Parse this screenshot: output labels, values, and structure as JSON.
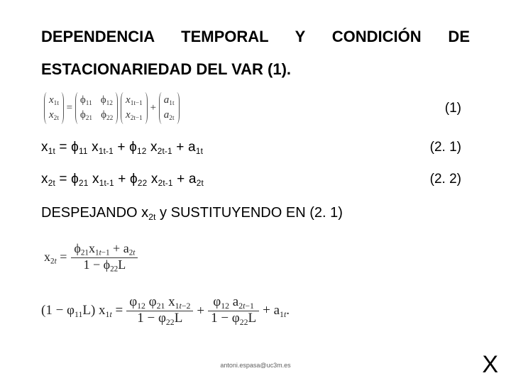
{
  "title_line1": "DEPENDENCIA TEMPORAL Y CONDICIÓN DE",
  "title_line2": "ESTACIONARIEDAD DEL VAR (1).",
  "matrix": {
    "lhs_r1": "x",
    "lhs_s1": "1t",
    "lhs_r2": "x",
    "lhs_s2": "2t",
    "eq": "=",
    "phi11": "11",
    "phi12": "12",
    "phi21": "21",
    "phi22": "22",
    "mid_r1": "x",
    "mid_s1": "1t−1",
    "mid_r2": "x",
    "mid_s2": "2t−1",
    "plus": "+",
    "a1": "a",
    "a1s": "1t",
    "a2": "a",
    "a2s": "2t"
  },
  "eqnum1": "(1)",
  "eq21": {
    "text_html": "x<sub>1t</sub> = ϕ<sub>11</sub> x<sub>1t-1</sub> + ϕ<sub>12</sub> x<sub>2t-1</sub> + a<sub>1t</sub>",
    "num": "(2. 1)"
  },
  "eq22": {
    "text_html": "x<sub>2t</sub> = ϕ<sub>21</sub> x<sub>1t-1</sub> + ϕ<sub>22</sub> x<sub>2t-1</sub> + a<sub>2t</sub>",
    "num": "(2. 2)"
  },
  "despejando_html": "DESPEJANDO x<sub>2t</sub> y SUSTITUYENDO EN (2. 1)",
  "deriv1": {
    "lhs_html": "x<sub>2<i>t</i></sub> =",
    "num_html": "ϕ<sub>21</sub>x<sub>1<i>t</i>−1</sub> + a<sub>2<i>t</i></sub>",
    "den_html": "1 − ϕ<sub>22</sub>L"
  },
  "deriv2": {
    "p1_html": "(1 − φ<sub>11</sub>L) x<sub>1<i>t</i></sub> =",
    "f1_num_html": "φ<sub>12</sub> φ<sub>21</sub> x<sub>1<i>t</i>−2</sub>",
    "f1_den_html": "1 − φ<sub>22</sub>L",
    "plus1": "+",
    "f2_num_html": "φ<sub>12</sub> a<sub>2<i>t</i>−1</sub>",
    "f2_den_html": "1 − φ<sub>22</sub>L",
    "tail_html": "+ a<sub>1<i>t</i></sub>."
  },
  "footer_email": "antoni.espasa@uc3m.es",
  "corner_x": "X"
}
